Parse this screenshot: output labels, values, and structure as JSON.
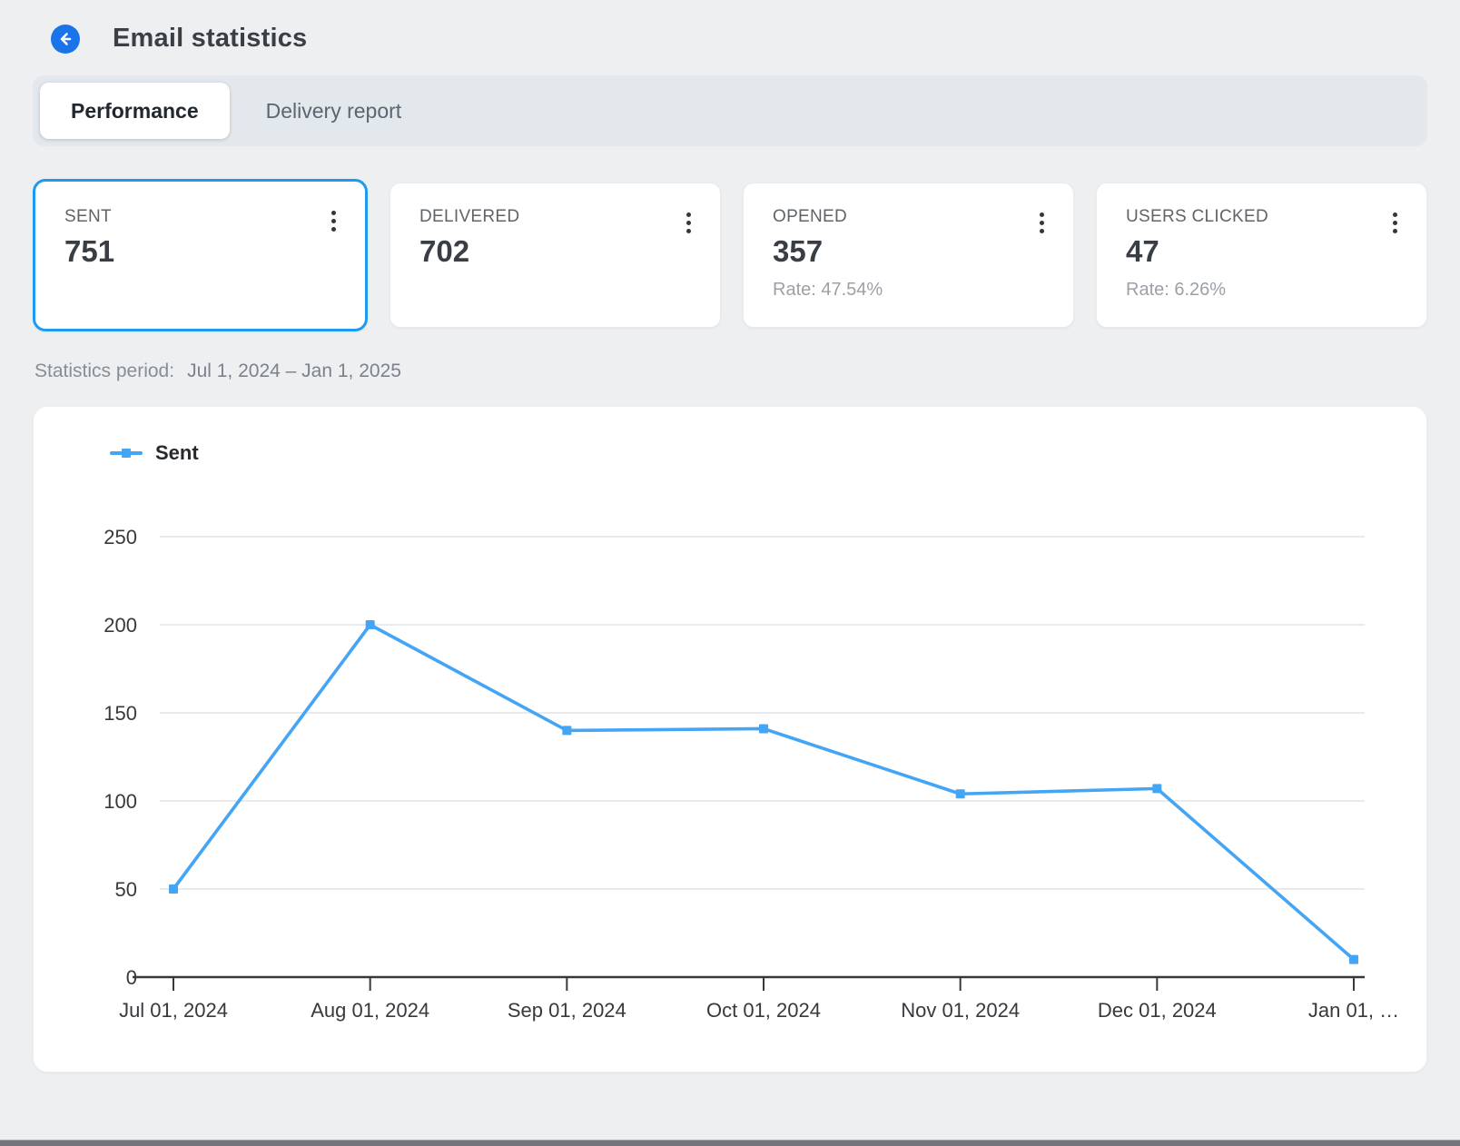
{
  "header": {
    "title": "Email statistics",
    "back_icon": "arrow-left-icon"
  },
  "tabs": [
    {
      "label": "Performance",
      "active": true
    },
    {
      "label": "Delivery report",
      "active": false
    }
  ],
  "cards": [
    {
      "label": "SENT",
      "value": "751",
      "selected": true
    },
    {
      "label": "DELIVERED",
      "value": "702"
    },
    {
      "label": "OPENED",
      "value": "357",
      "rate": "Rate: 47.54%"
    },
    {
      "label": "USERS CLICKED",
      "value": "47",
      "rate": "Rate: 6.26%"
    }
  ],
  "period": {
    "label": "Statistics period:",
    "value": "Jul 1, 2024 – Jan 1, 2025"
  },
  "colors": {
    "accent_blue": "#1a73e8",
    "selected_card_border": "#1d9bf0",
    "line_blue": "#45a5f5",
    "gridline": "#e4e4e6",
    "axis": "#37393c"
  },
  "chart_data": {
    "type": "line",
    "title": "",
    "xlabel": "",
    "ylabel": "",
    "categories": [
      "Jul 01, 2024",
      "Aug 01, 2024",
      "Sep 01, 2024",
      "Oct 01, 2024",
      "Nov 01, 2024",
      "Dec 01, 2024",
      "Jan 01, …"
    ],
    "series": [
      {
        "name": "Sent",
        "color": "#45a5f5",
        "values": [
          50,
          200,
          140,
          141,
          104,
          107,
          10
        ]
      }
    ],
    "ylim": [
      0,
      250
    ],
    "yticks": [
      0,
      50,
      100,
      150,
      200,
      250
    ],
    "grid": "horizontal",
    "legend_position": "top-left",
    "marker": "square"
  }
}
